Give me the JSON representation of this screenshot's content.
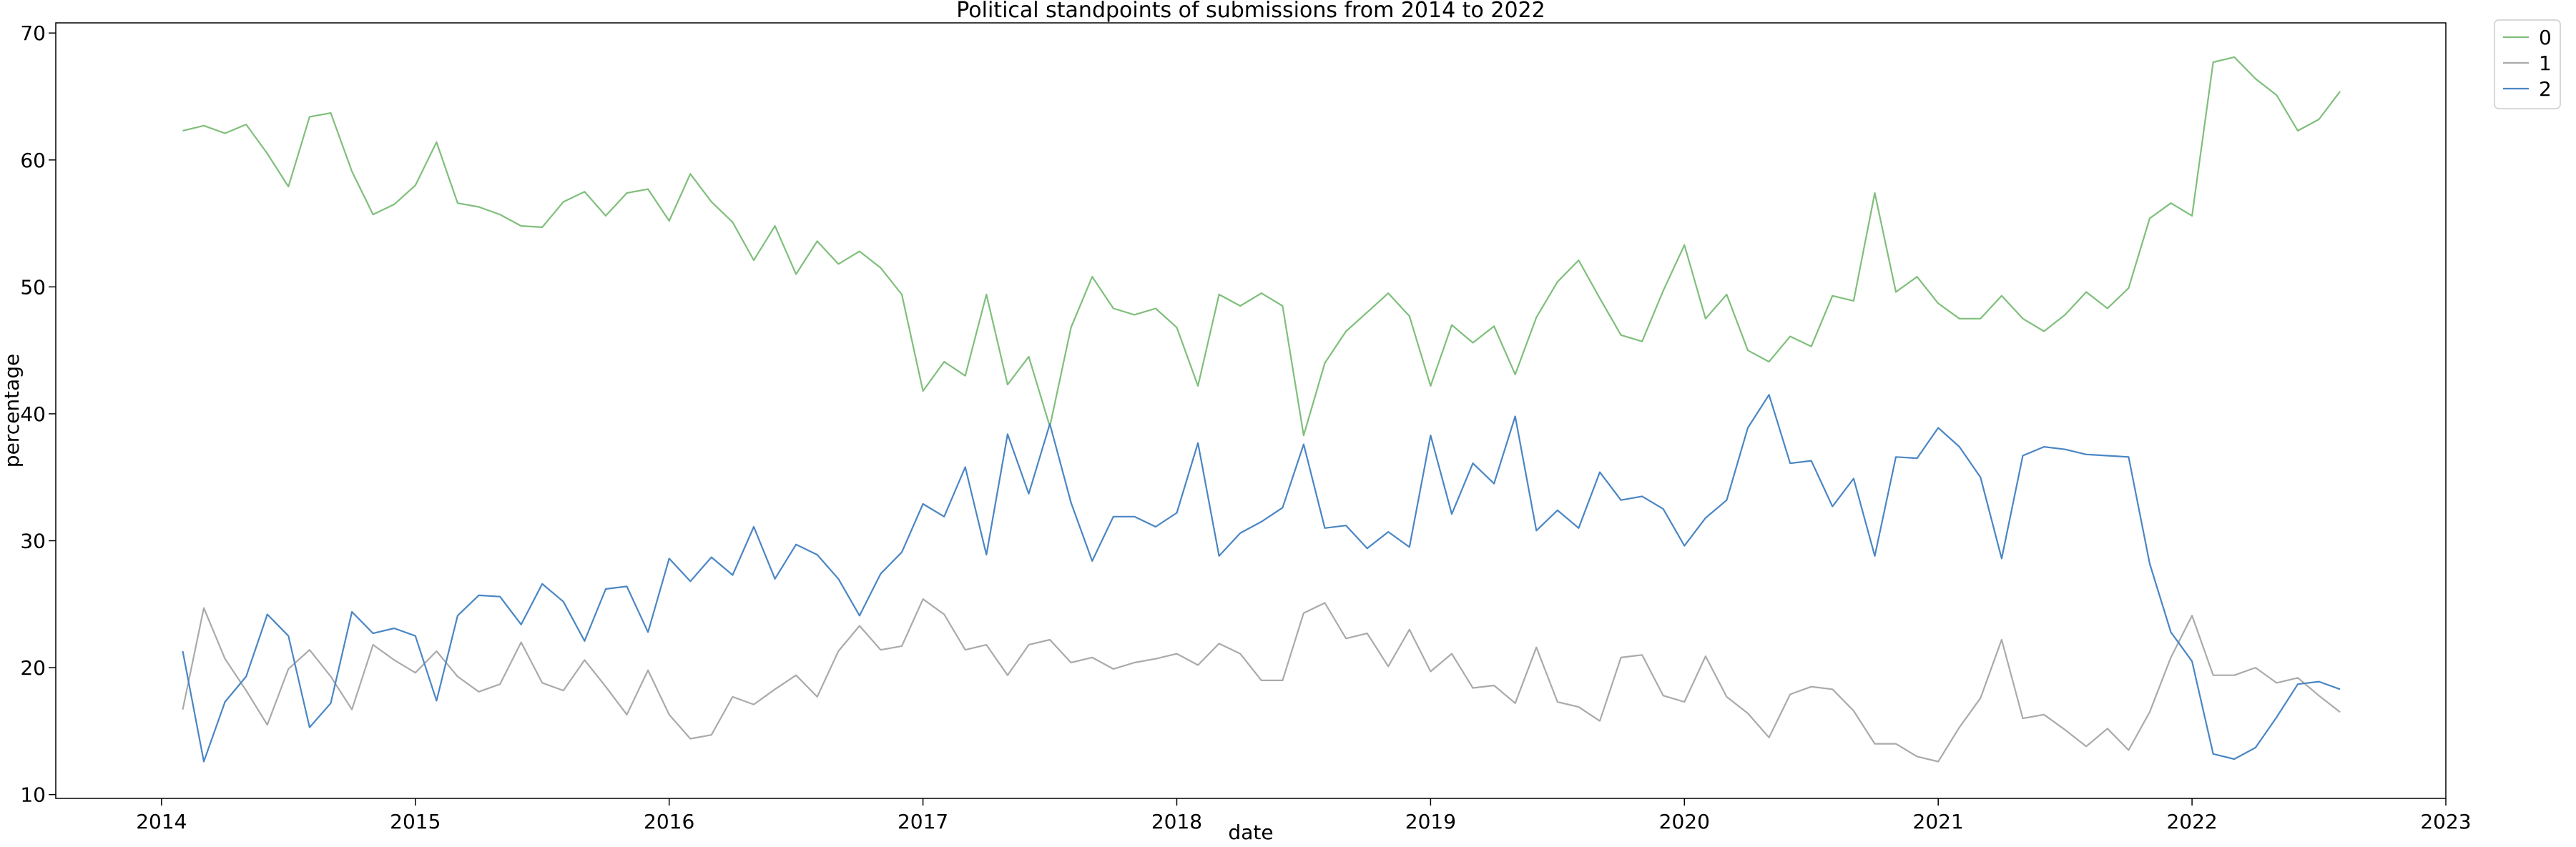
{
  "chart_data": {
    "type": "line",
    "title": "Political standpoints of submissions from 2014 to 2022",
    "xlabel": "date",
    "ylabel": "percentage",
    "x_ticks": [
      "2014",
      "2015",
      "2016",
      "2017",
      "2018",
      "2019",
      "2020",
      "2021",
      "2022",
      "2023"
    ],
    "y_ticks": [
      10,
      20,
      30,
      40,
      50,
      60,
      70
    ],
    "xlim": [
      "2013-08",
      "2023-01"
    ],
    "ylim": [
      9.7,
      70.8
    ],
    "grid": false,
    "legend_position": "outside-top-right",
    "x": [
      "2014-02",
      "2014-03",
      "2014-04",
      "2014-05",
      "2014-06",
      "2014-07",
      "2014-08",
      "2014-09",
      "2014-10",
      "2014-11",
      "2014-12",
      "2015-01",
      "2015-02",
      "2015-03",
      "2015-04",
      "2015-05",
      "2015-06",
      "2015-07",
      "2015-08",
      "2015-09",
      "2015-10",
      "2015-11",
      "2015-12",
      "2016-01",
      "2016-02",
      "2016-03",
      "2016-04",
      "2016-05",
      "2016-06",
      "2016-07",
      "2016-08",
      "2016-09",
      "2016-10",
      "2016-11",
      "2016-12",
      "2017-01",
      "2017-02",
      "2017-03",
      "2017-04",
      "2017-05",
      "2017-06",
      "2017-07",
      "2017-08",
      "2017-09",
      "2017-10",
      "2017-11",
      "2017-12",
      "2018-01",
      "2018-02",
      "2018-03",
      "2018-04",
      "2018-05",
      "2018-06",
      "2018-07",
      "2018-08",
      "2018-09",
      "2018-10",
      "2018-11",
      "2018-12",
      "2019-01",
      "2019-02",
      "2019-03",
      "2019-04",
      "2019-05",
      "2019-06",
      "2019-07",
      "2019-08",
      "2019-09",
      "2019-10",
      "2019-11",
      "2019-12",
      "2020-01",
      "2020-02",
      "2020-03",
      "2020-04",
      "2020-05",
      "2020-06",
      "2020-07",
      "2020-08",
      "2020-09",
      "2020-10",
      "2020-11",
      "2020-12",
      "2021-01",
      "2021-02",
      "2021-03",
      "2021-04",
      "2021-05",
      "2021-06",
      "2021-07",
      "2021-08",
      "2021-09",
      "2021-10",
      "2021-11",
      "2021-12",
      "2022-01",
      "2022-02",
      "2022-03",
      "2022-04",
      "2022-05",
      "2022-06",
      "2022-07",
      "2022-08"
    ],
    "series": [
      {
        "name": "0",
        "color": "#7fbf7b",
        "values": [
          62.3,
          62.7,
          62.1,
          62.8,
          60.5,
          57.9,
          63.4,
          63.7,
          59.1,
          55.7,
          56.5,
          58.0,
          61.4,
          56.6,
          56.3,
          55.7,
          54.8,
          54.7,
          56.7,
          57.5,
          55.6,
          57.4,
          57.7,
          55.2,
          58.9,
          56.7,
          55.1,
          52.1,
          54.8,
          51.0,
          53.6,
          51.8,
          52.8,
          51.5,
          49.4,
          41.8,
          44.1,
          43.0,
          49.4,
          42.3,
          44.5,
          39.0,
          46.8,
          50.8,
          48.3,
          47.8,
          48.3,
          46.8,
          42.2,
          49.4,
          48.5,
          49.5,
          48.5,
          38.3,
          44.0,
          46.5,
          48.0,
          49.5,
          47.7,
          42.2,
          47.0,
          45.6,
          46.9,
          43.1,
          47.6,
          50.4,
          52.1,
          49.1,
          46.2,
          45.7,
          49.7,
          53.3,
          47.5,
          49.4,
          45.0,
          44.1,
          46.1,
          45.3,
          49.3,
          48.9,
          57.4,
          49.6,
          50.8,
          48.7,
          47.5,
          47.5,
          49.3,
          47.5,
          46.5,
          47.8,
          49.6,
          48.3,
          49.9,
          55.4,
          56.6,
          55.6,
          67.7,
          68.1,
          66.4,
          65.1,
          62.3,
          63.2,
          65.4
        ]
      },
      {
        "name": "1",
        "color": "#aaaaaa",
        "values": [
          16.7,
          24.7,
          20.7,
          18.2,
          15.5,
          19.9,
          21.4,
          19.3,
          16.7,
          21.8,
          20.6,
          19.6,
          21.3,
          19.3,
          18.1,
          18.7,
          22.0,
          18.8,
          18.2,
          20.6,
          18.5,
          16.3,
          19.8,
          16.3,
          14.4,
          14.7,
          17.7,
          17.1,
          18.3,
          19.4,
          17.7,
          21.3,
          23.3,
          21.4,
          21.7,
          25.4,
          24.2,
          21.4,
          21.8,
          19.4,
          21.8,
          22.2,
          20.4,
          20.8,
          19.9,
          20.4,
          20.7,
          21.1,
          20.2,
          21.9,
          21.1,
          19.0,
          19.0,
          24.3,
          25.1,
          22.3,
          22.7,
          20.1,
          23.0,
          19.7,
          21.1,
          18.4,
          18.6,
          17.2,
          21.6,
          17.3,
          16.9,
          15.8,
          20.8,
          21.0,
          17.8,
          17.3,
          20.9,
          17.7,
          16.4,
          14.5,
          17.9,
          18.5,
          18.3,
          16.6,
          14.0,
          14.0,
          13.0,
          12.6,
          15.3,
          17.6,
          22.2,
          16.0,
          16.3,
          15.1,
          13.8,
          15.2,
          13.5,
          16.5,
          20.8,
          24.1,
          19.4,
          19.4,
          20.0,
          18.8,
          19.2,
          17.8,
          16.5
        ]
      },
      {
        "name": "2",
        "color": "#4a86c4",
        "values": [
          21.3,
          12.6,
          17.3,
          19.3,
          24.2,
          22.5,
          15.3,
          17.2,
          24.4,
          22.7,
          23.1,
          22.5,
          17.4,
          24.1,
          25.7,
          25.6,
          23.4,
          26.6,
          25.2,
          22.1,
          26.2,
          26.4,
          22.8,
          28.6,
          26.8,
          28.7,
          27.3,
          31.1,
          27.0,
          29.7,
          28.9,
          27.0,
          24.1,
          27.4,
          29.1,
          32.9,
          31.9,
          35.8,
          28.9,
          38.4,
          33.7,
          39.2,
          33.0,
          28.4,
          31.9,
          31.9,
          31.1,
          32.2,
          37.7,
          28.8,
          30.6,
          31.5,
          32.6,
          37.6,
          31.0,
          31.2,
          29.4,
          30.7,
          29.5,
          38.3,
          32.1,
          36.1,
          34.5,
          39.8,
          30.8,
          32.4,
          31.0,
          35.4,
          33.2,
          33.5,
          32.5,
          29.6,
          31.8,
          33.2,
          38.9,
          41.5,
          36.1,
          36.3,
          32.7,
          34.9,
          28.8,
          36.6,
          36.5,
          38.9,
          37.4,
          35.0,
          28.6,
          36.7,
          37.4,
          37.2,
          36.8,
          36.7,
          36.6,
          28.2,
          22.8,
          20.5,
          13.2,
          12.8,
          13.7,
          16.1,
          18.7,
          18.9,
          18.3
        ]
      }
    ]
  }
}
